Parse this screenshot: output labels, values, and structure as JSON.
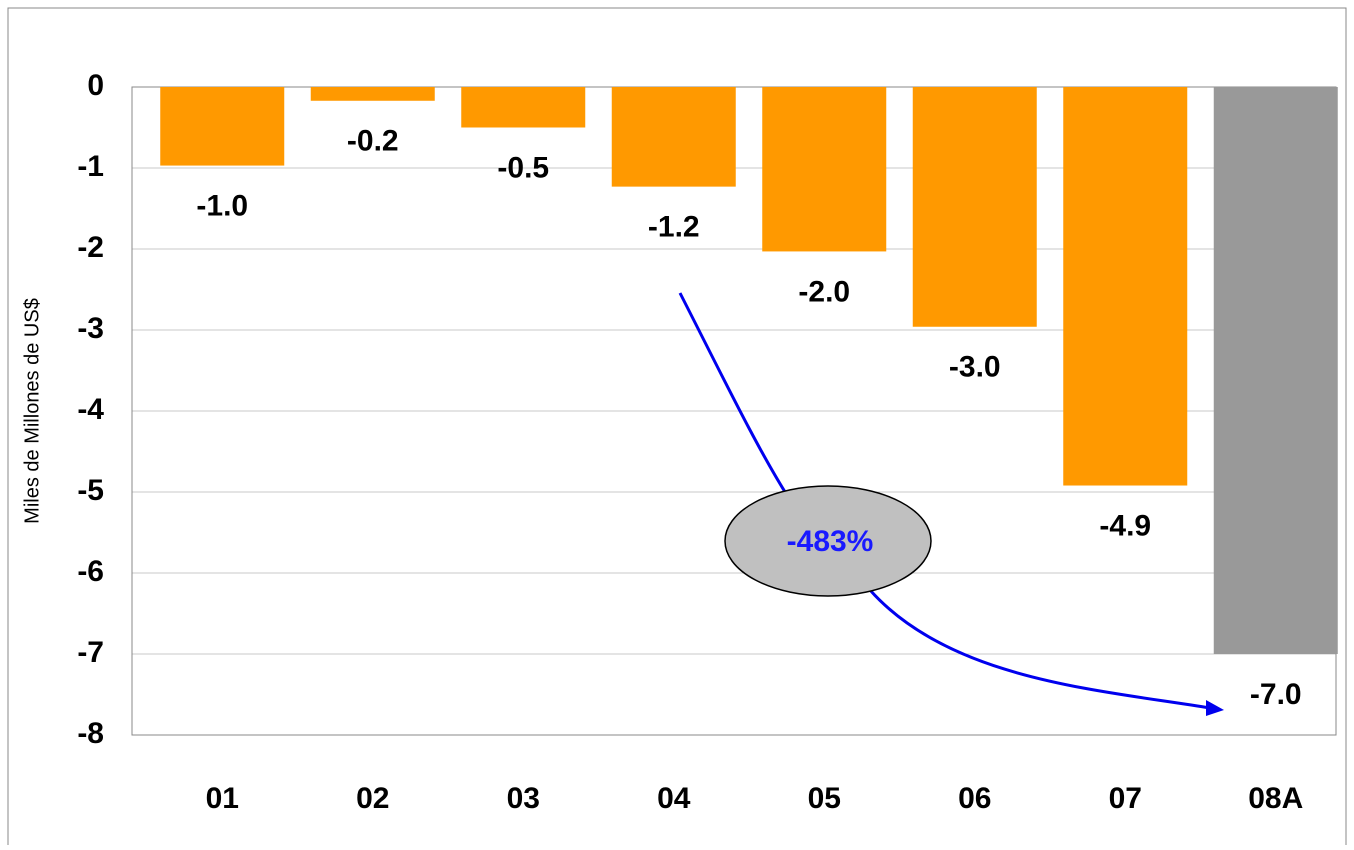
{
  "chart_data": {
    "type": "bar",
    "y_label": "Miles de Millones de US$",
    "categories": [
      "01",
      "02",
      "03",
      "04",
      "05",
      "06",
      "07",
      "08A"
    ],
    "values": [
      -0.97,
      -0.17,
      -0.5,
      -1.23,
      -2.03,
      -2.96,
      -4.92,
      -7.0
    ],
    "value_labels": [
      "-1.0",
      "-0.2",
      "-0.5",
      "-1.2",
      "-2.0",
      "-3.0",
      "-4.9",
      "-7.0"
    ],
    "colors": [
      "#ff9900",
      "#ff9900",
      "#ff9900",
      "#ff9900",
      "#ff9900",
      "#ff9900",
      "#ff9900",
      "#999999"
    ],
    "ylim": [
      -8,
      0
    ],
    "yticks": [
      0,
      -1,
      -2,
      -3,
      -4,
      -5,
      -6,
      -7,
      -8
    ],
    "grid": true,
    "annotation": "-483%"
  }
}
